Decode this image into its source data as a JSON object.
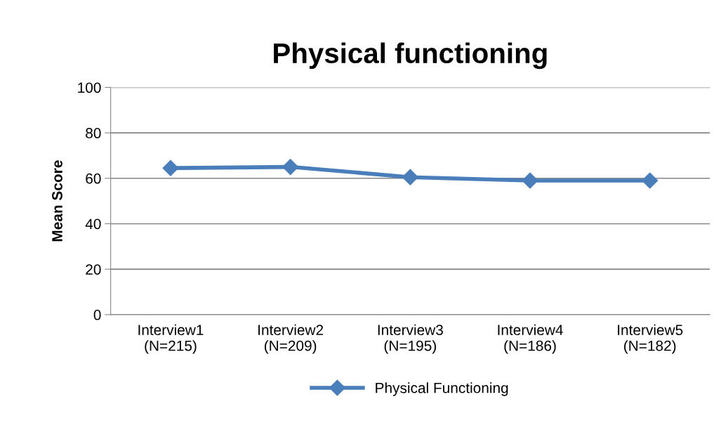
{
  "chart_data": {
    "type": "line",
    "title": "Physical functioning",
    "ylabel": "Mean Score",
    "categories": [
      "Interview1\n(N=215)",
      "Interview2\n(N=209)",
      "Interview3\n(N=195)",
      "Interview4\n(N=186)",
      "Interview5\n(N=182)"
    ],
    "series": [
      {
        "name": "Physical Functioning",
        "color": "#4a7ebb",
        "values": [
          64.5,
          65,
          60.5,
          59,
          59
        ]
      }
    ],
    "ylim": [
      0,
      100
    ],
    "yticks": [
      0,
      20,
      40,
      60,
      80,
      100
    ],
    "grid": "y",
    "legend": "bottom",
    "marker": "diamond",
    "line_style": "solid"
  }
}
